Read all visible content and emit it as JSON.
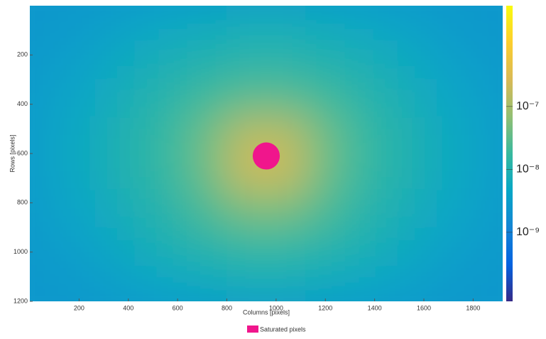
{
  "chart_data": {
    "type": "heatmap",
    "xlabel": "Columns [pixels]",
    "ylabel": "Rows [pixels]",
    "xlim": [
      0,
      1920
    ],
    "ylim": [
      0,
      1200
    ],
    "y_reversed": true,
    "xticks": [
      200,
      400,
      600,
      800,
      1000,
      1200,
      1400,
      1600,
      1800
    ],
    "yticks": [
      200,
      400,
      600,
      800,
      1000,
      1200
    ],
    "values": [
      [
        2.5e-09,
        3e-09,
        4e-09,
        5e-09,
        6e-09,
        7e-09,
        7e-09,
        6e-09,
        5e-09,
        4e-09,
        3e-09,
        2.5e-09
      ],
      [
        3e-09,
        4e-09,
        6e-09,
        8e-09,
        1e-08,
        1.2e-08,
        1.2e-08,
        1e-08,
        8e-09,
        6e-09,
        4e-09,
        3e-09
      ],
      [
        3.5e-09,
        5e-09,
        8e-09,
        1.2e-08,
        2e-08,
        3e-08,
        3e-08,
        2e-08,
        1.2e-08,
        8e-09,
        5e-09,
        3.5e-09
      ],
      [
        4e-09,
        6e-09,
        1e-08,
        1.6e-08,
        4e-08,
        1.5e-07,
        1.5e-07,
        4e-08,
        1.6e-08,
        1e-08,
        6e-09,
        4e-09
      ],
      [
        4e-09,
        6e-09,
        1e-08,
        1.6e-08,
        4e-08,
        2e-07,
        2e-07,
        4e-08,
        1.6e-08,
        1e-08,
        6e-09,
        4e-09
      ],
      [
        3.5e-09,
        5e-09,
        8e-09,
        1.2e-08,
        2.5e-08,
        5e-08,
        5e-08,
        2.5e-08,
        1.2e-08,
        8e-09,
        5e-09,
        3.5e-09
      ],
      [
        3e-09,
        4e-09,
        6e-09,
        9e-09,
        1.2e-08,
        1.6e-08,
        1.6e-08,
        1.2e-08,
        9e-09,
        6e-09,
        4e-09,
        3e-09
      ],
      [
        2.5e-09,
        3e-09,
        4e-09,
        5e-09,
        6e-09,
        7e-09,
        7e-09,
        6e-09,
        5e-09,
        4e-09,
        3e-09,
        2.5e-09
      ]
    ],
    "colormap": [
      "#352a87",
      "#0363e1",
      "#1485d4",
      "#06a7c6",
      "#38b99e",
      "#92bf73",
      "#d9ba56",
      "#fcce2e",
      "#f9fb0e"
    ],
    "clim": [
      8e-11,
      4e-06
    ],
    "color_log_scale": true,
    "cticks": [
      {
        "value": 1e-09,
        "label": "10⁻⁹"
      },
      {
        "value": 1e-08,
        "label": "10⁻⁸"
      },
      {
        "value": 1e-07,
        "label": "10⁻⁷"
      }
    ],
    "saturated_region": {
      "x": 960,
      "y": 610,
      "r": 55
    },
    "saturated_color": "#f0168c",
    "legend_label": "Saturated pixels"
  }
}
